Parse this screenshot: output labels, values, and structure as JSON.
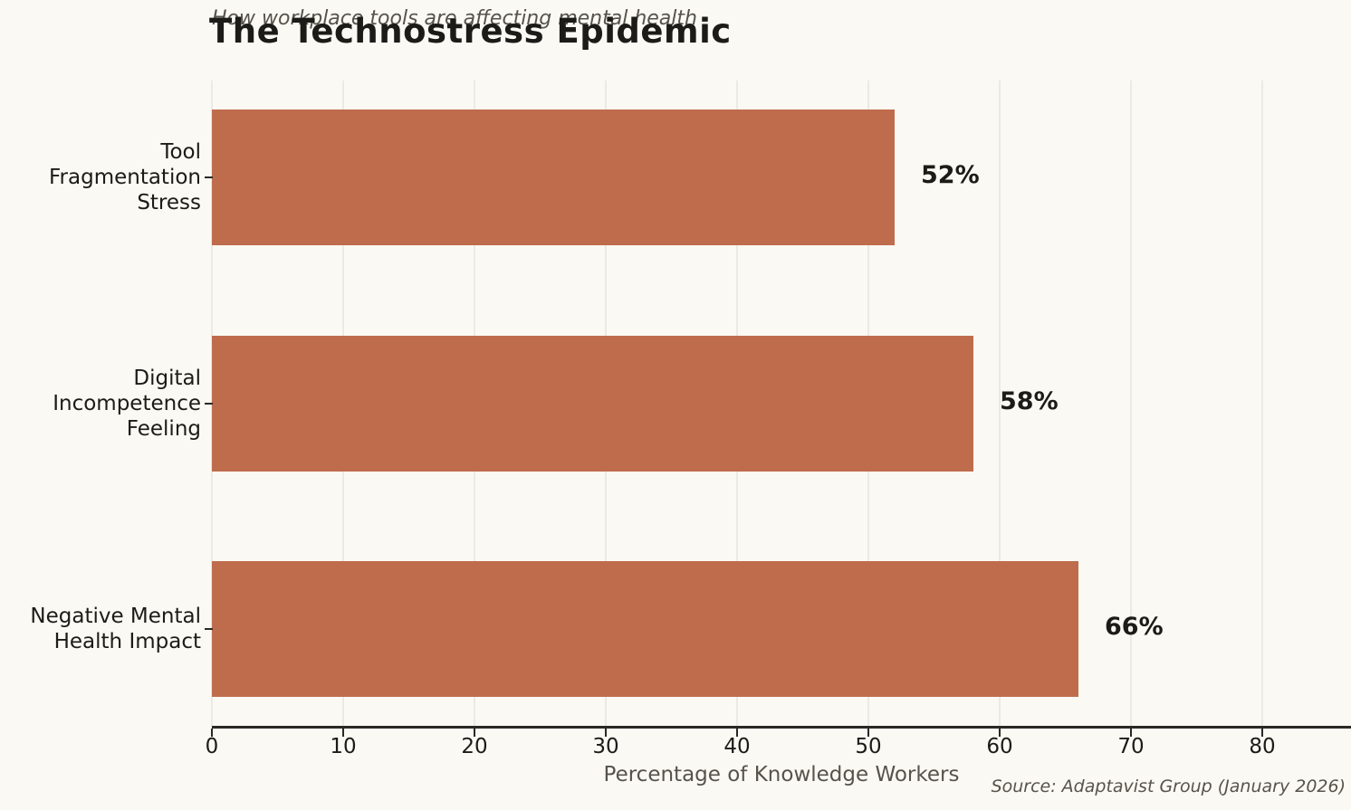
{
  "page": {
    "background_color": "#faf9f3"
  },
  "chart_data": {
    "type": "bar",
    "orientation": "horizontal",
    "title": "The Technostress Epidemic",
    "subtitle": "How workplace tools are affecting mental health",
    "xlabel": "Percentage of Knowledge Workers",
    "ylabel": "",
    "source": "Source: Adaptavist Group (January 2026)",
    "categories": [
      "Tool Fragmentation Stress",
      "Digital Incompetence Feeling",
      "Negative Mental Health Impact"
    ],
    "category_label_lines": [
      [
        "Tool",
        "Fragmentation",
        "Stress"
      ],
      [
        "Digital",
        "Incompetence",
        "Feeling"
      ],
      [
        "Negative Mental",
        "Health Impact"
      ]
    ],
    "values": [
      52,
      58,
      66
    ],
    "value_labels": [
      "52%",
      "58%",
      "66%"
    ],
    "xticks": [
      0,
      10,
      20,
      30,
      40,
      50,
      60,
      70,
      80
    ],
    "xlim": [
      0,
      86.7
    ],
    "grid": true,
    "legend": "none",
    "colors": {
      "bar": "#bf6c4d",
      "grid": "#eceae4",
      "axis": "#2b2925",
      "text": "#1c1b18",
      "muted_text": "#56534c",
      "background": "#faf9f3"
    }
  }
}
